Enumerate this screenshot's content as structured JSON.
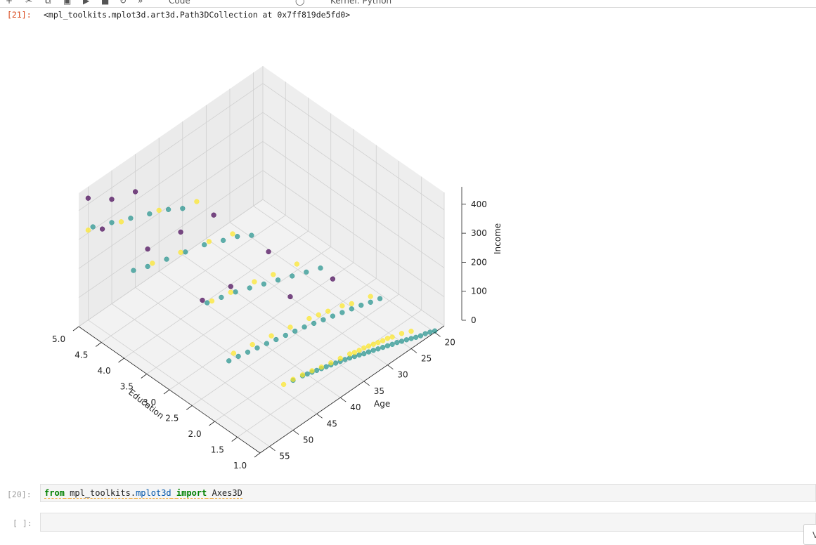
{
  "toolbar": {
    "cell_type": "Code",
    "kernel": "Kernel: Python"
  },
  "output_cell": {
    "prompt": "[21]:",
    "text": "<mpl_toolkits.mplot3d.art3d.Path3DCollection at 0x7ff819de5fd0>"
  },
  "chart_data": {
    "type": "scatter3d",
    "title": "",
    "xlabel": "Age",
    "ylabel": "Education",
    "zlabel": "Income",
    "x_ticks": [
      "20",
      "25",
      "30",
      "35",
      "40",
      "45",
      "50",
      "55"
    ],
    "y_ticks": [
      "1.0",
      "1.5",
      "2.0",
      "2.5",
      "3.0",
      "3.5",
      "4.0",
      "4.5",
      "5.0"
    ],
    "z_ticks": [
      "0",
      "100",
      "200",
      "300",
      "400"
    ],
    "xlim": [
      18,
      57
    ],
    "ylim": [
      1.0,
      5.0
    ],
    "zlim": [
      0,
      460
    ],
    "color_classes": {
      "0": "#440154",
      "1": "#21918c",
      "2": "#fde725"
    },
    "points": [
      [
        20,
        1,
        5,
        1
      ],
      [
        21,
        1,
        12,
        1
      ],
      [
        22,
        1,
        18,
        1
      ],
      [
        23,
        1,
        22,
        1
      ],
      [
        24,
        1,
        28,
        1
      ],
      [
        25,
        1,
        35,
        1
      ],
      [
        26,
        1,
        42,
        1
      ],
      [
        27,
        1,
        48,
        1
      ],
      [
        28,
        1,
        55,
        1
      ],
      [
        29,
        1,
        60,
        1
      ],
      [
        30,
        1,
        66,
        1
      ],
      [
        31,
        1,
        72,
        1
      ],
      [
        32,
        1,
        78,
        1
      ],
      [
        33,
        1,
        84,
        1
      ],
      [
        34,
        1,
        90,
        1
      ],
      [
        35,
        1,
        95,
        1
      ],
      [
        36,
        1,
        102,
        1
      ],
      [
        37,
        1,
        108,
        1
      ],
      [
        38,
        1,
        114,
        1
      ],
      [
        39,
        1,
        120,
        1
      ],
      [
        40,
        1,
        125,
        1
      ],
      [
        41,
        1,
        130,
        1
      ],
      [
        42,
        1,
        135,
        1
      ],
      [
        43,
        1,
        140,
        1
      ],
      [
        44,
        1,
        145,
        1
      ],
      [
        45,
        1,
        150,
        1
      ],
      [
        46,
        1,
        155,
        1
      ],
      [
        47,
        1,
        160,
        1
      ],
      [
        48,
        1,
        165,
        1
      ],
      [
        50,
        1,
        172,
        1
      ],
      [
        25,
        1,
        60,
        2
      ],
      [
        27,
        1,
        75,
        2
      ],
      [
        29,
        1,
        85,
        2
      ],
      [
        30,
        1,
        92,
        2
      ],
      [
        32,
        1,
        100,
        2
      ],
      [
        34,
        1,
        110,
        2
      ],
      [
        36,
        1,
        118,
        2
      ],
      [
        38,
        1,
        128,
        2
      ],
      [
        40,
        1,
        135,
        2
      ],
      [
        42,
        1,
        142,
        2
      ],
      [
        44,
        1,
        150,
        2
      ],
      [
        46,
        1,
        160,
        2
      ],
      [
        48,
        1,
        168,
        2
      ],
      [
        50,
        1,
        175,
        2
      ],
      [
        52,
        1,
        180,
        2
      ],
      [
        31,
        1,
        95,
        2
      ],
      [
        33,
        1,
        105,
        2
      ],
      [
        35,
        1,
        115,
        2
      ],
      [
        37,
        1,
        122,
        2
      ],
      [
        22,
        2,
        30,
        1
      ],
      [
        24,
        2,
        40,
        1
      ],
      [
        26,
        2,
        52,
        1
      ],
      [
        28,
        2,
        62,
        1
      ],
      [
        30,
        2,
        72,
        1
      ],
      [
        32,
        2,
        82,
        1
      ],
      [
        34,
        2,
        92,
        1
      ],
      [
        36,
        2,
        102,
        1
      ],
      [
        38,
        2,
        112,
        1
      ],
      [
        40,
        2,
        120,
        1
      ],
      [
        42,
        2,
        128,
        1
      ],
      [
        44,
        2,
        136,
        1
      ],
      [
        46,
        2,
        145,
        1
      ],
      [
        48,
        2,
        152,
        1
      ],
      [
        50,
        2,
        160,
        1
      ],
      [
        52,
        2,
        168,
        1
      ],
      [
        54,
        2,
        175,
        1
      ],
      [
        24,
        2,
        60,
        2
      ],
      [
        28,
        2,
        80,
        2
      ],
      [
        30,
        2,
        95,
        2
      ],
      [
        33,
        2,
        110,
        2
      ],
      [
        35,
        2,
        120,
        2
      ],
      [
        37,
        2,
        130,
        2
      ],
      [
        41,
        2,
        145,
        2
      ],
      [
        45,
        2,
        160,
        2
      ],
      [
        49,
        2,
        175,
        2
      ],
      [
        53,
        2,
        190,
        2
      ],
      [
        32,
        2,
        210,
        0
      ],
      [
        41,
        2,
        250,
        0
      ],
      [
        25,
        3,
        60,
        1
      ],
      [
        28,
        3,
        80,
        1
      ],
      [
        31,
        3,
        100,
        1
      ],
      [
        34,
        3,
        120,
        1
      ],
      [
        37,
        3,
        140,
        1
      ],
      [
        40,
        3,
        160,
        1
      ],
      [
        43,
        3,
        180,
        1
      ],
      [
        46,
        3,
        195,
        1
      ],
      [
        49,
        3,
        210,
        1
      ],
      [
        30,
        3,
        130,
        2
      ],
      [
        35,
        3,
        150,
        2
      ],
      [
        39,
        3,
        170,
        2
      ],
      [
        44,
        3,
        190,
        2
      ],
      [
        48,
        3,
        205,
        2
      ],
      [
        36,
        3,
        240,
        0
      ],
      [
        44,
        3,
        210,
        0
      ],
      [
        50,
        3,
        230,
        0
      ],
      [
        30,
        4,
        120,
        1
      ],
      [
        33,
        4,
        150,
        1
      ],
      [
        36,
        4,
        170,
        1
      ],
      [
        40,
        4,
        200,
        1
      ],
      [
        44,
        4,
        220,
        1
      ],
      [
        48,
        4,
        240,
        1
      ],
      [
        52,
        4,
        260,
        1
      ],
      [
        55,
        4,
        280,
        1
      ],
      [
        34,
        4,
        170,
        2
      ],
      [
        39,
        4,
        200,
        2
      ],
      [
        45,
        4,
        230,
        2
      ],
      [
        51,
        4,
        260,
        2
      ],
      [
        38,
        4,
        280,
        0
      ],
      [
        45,
        4,
        300,
        0
      ],
      [
        52,
        4,
        320,
        0
      ],
      [
        35,
        5,
        160,
        1
      ],
      [
        38,
        5,
        190,
        1
      ],
      [
        42,
        5,
        220,
        1
      ],
      [
        46,
        5,
        250,
        1
      ],
      [
        50,
        5,
        280,
        1
      ],
      [
        54,
        5,
        310,
        1
      ],
      [
        32,
        5,
        150,
        2
      ],
      [
        40,
        5,
        210,
        2
      ],
      [
        48,
        5,
        260,
        2
      ],
      [
        55,
        5,
        310,
        2
      ],
      [
        45,
        5,
        330,
        0
      ],
      [
        50,
        5,
        360,
        0
      ],
      [
        55,
        5,
        420,
        0
      ],
      [
        52,
        5,
        280,
        0
      ]
    ]
  },
  "input_cell_1": {
    "prompt": "[20]:",
    "kw_from": "from",
    "mod_a": "mpl_toolkits",
    "dot": ".",
    "mod_b": "mplot3d",
    "kw_import": "import",
    "name": "Axes3D"
  },
  "input_cell_2": {
    "prompt": "[ ]:"
  },
  "corner_badge": {
    "label": "V"
  }
}
